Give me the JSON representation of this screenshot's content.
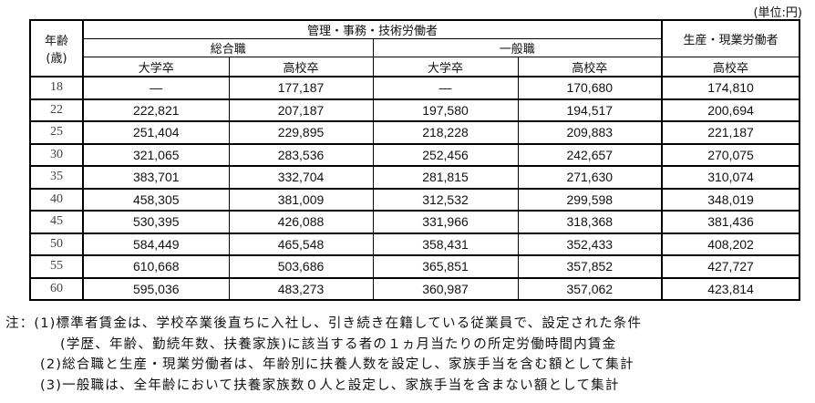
{
  "unit": "(単位:円)",
  "header": {
    "age": "年齢\n(歳)",
    "age_line1": "年齢",
    "age_line2": "(歳)",
    "group_admin": "管理・事務・技術労働者",
    "group_production": "生産・現業労働者",
    "sub_general": "総合職",
    "sub_clerical": "一般職",
    "col_univ": "大学卒",
    "col_high": "高校卒"
  },
  "rows": [
    {
      "age": "18",
      "g_univ": "—",
      "g_high": "177,187",
      "c_univ": "—",
      "c_high": "170,680",
      "p_high": "174,810"
    },
    {
      "age": "22",
      "g_univ": "222,821",
      "g_high": "207,187",
      "c_univ": "197,580",
      "c_high": "194,517",
      "p_high": "200,694"
    },
    {
      "age": "25",
      "g_univ": "251,404",
      "g_high": "229,895",
      "c_univ": "218,228",
      "c_high": "209,883",
      "p_high": "221,187"
    },
    {
      "age": "30",
      "g_univ": "321,065",
      "g_high": "283,536",
      "c_univ": "252,456",
      "c_high": "242,657",
      "p_high": "270,075"
    },
    {
      "age": "35",
      "g_univ": "383,701",
      "g_high": "332,704",
      "c_univ": "281,815",
      "c_high": "271,630",
      "p_high": "310,074"
    },
    {
      "age": "40",
      "g_univ": "458,305",
      "g_high": "381,009",
      "c_univ": "312,532",
      "c_high": "299,598",
      "p_high": "348,019"
    },
    {
      "age": "45",
      "g_univ": "530,395",
      "g_high": "426,088",
      "c_univ": "331,966",
      "c_high": "318,368",
      "p_high": "381,436"
    },
    {
      "age": "50",
      "g_univ": "584,449",
      "g_high": "465,548",
      "c_univ": "358,431",
      "c_high": "352,433",
      "p_high": "408,202"
    },
    {
      "age": "55",
      "g_univ": "610,668",
      "g_high": "503,686",
      "c_univ": "365,851",
      "c_high": "357,852",
      "p_high": "427,727"
    },
    {
      "age": "60",
      "g_univ": "595,036",
      "g_high": "483,273",
      "c_univ": "360,987",
      "c_high": "357,062",
      "p_high": "423,814"
    }
  ],
  "notes": [
    "注：(1)標準者賃金は、学校卒業後直ちに入社し、引き続き在籍している従業員で、設定された条件",
    "(学歴、年齢、勤続年数、扶養家族)に該当する者の１ヵ月当たりの所定労働時間内賃金",
    "(2)総合職と生産・現業労働者は、年齢別に扶養人数を設定し、家族手当を含む額として集計",
    "(3)一般職は、全年齢において扶養家族数０人と設定し、家族手当を含まない額として集計"
  ]
}
